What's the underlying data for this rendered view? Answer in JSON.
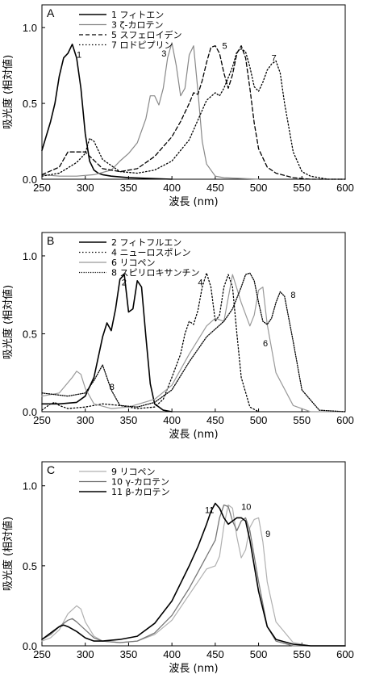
{
  "chart_data": [
    {
      "type": "line",
      "panel_label": "A",
      "xlabel": "波長 (nm)",
      "ylabel": "吸光度 (相対値)",
      "xlim": [
        250,
        600
      ],
      "ylim": [
        0,
        1.15
      ],
      "xticks": [
        "250",
        "300",
        "350",
        "400",
        "450",
        "500",
        "550",
        "600"
      ],
      "yticks": [
        "0.0",
        "0.5",
        "1.0"
      ],
      "legend_position": "top-left",
      "series": [
        {
          "name": "1 フィトエン",
          "color": "#000000",
          "width": 1.6,
          "dash": "none",
          "x": [
            250,
            260,
            265,
            270,
            275,
            280,
            285,
            290,
            295,
            300,
            305,
            310,
            315,
            320,
            330,
            350,
            400
          ],
          "y": [
            0.19,
            0.38,
            0.5,
            0.68,
            0.8,
            0.83,
            0.89,
            0.8,
            0.6,
            0.3,
            0.12,
            0.06,
            0.04,
            0.03,
            0.02,
            0.01,
            0.0
          ]
        },
        {
          "name": "3 ζ-カロテン",
          "color": "#888888",
          "width": 1.2,
          "dash": "none",
          "x": [
            250,
            270,
            290,
            310,
            330,
            340,
            350,
            360,
            370,
            375,
            380,
            385,
            390,
            395,
            400,
            405,
            410,
            415,
            420,
            425,
            430,
            435,
            440,
            450,
            460,
            500
          ],
          "y": [
            0.03,
            0.02,
            0.02,
            0.03,
            0.06,
            0.12,
            0.17,
            0.24,
            0.4,
            0.55,
            0.55,
            0.49,
            0.6,
            0.8,
            0.9,
            0.75,
            0.55,
            0.6,
            0.82,
            0.88,
            0.58,
            0.25,
            0.1,
            0.02,
            0.01,
            0.0
          ]
        },
        {
          "name": "5 スフェロイデン",
          "color": "#000000",
          "width": 1.3,
          "dash": "5,3",
          "x": [
            250,
            270,
            280,
            290,
            300,
            320,
            340,
            360,
            380,
            400,
            410,
            420,
            425,
            430,
            435,
            440,
            445,
            450,
            455,
            460,
            465,
            470,
            475,
            480,
            485,
            490,
            495,
            500,
            510,
            520,
            540,
            560,
            600
          ],
          "y": [
            0.03,
            0.08,
            0.18,
            0.18,
            0.18,
            0.07,
            0.05,
            0.07,
            0.15,
            0.28,
            0.38,
            0.5,
            0.57,
            0.56,
            0.65,
            0.77,
            0.87,
            0.88,
            0.83,
            0.7,
            0.6,
            0.69,
            0.83,
            0.88,
            0.8,
            0.6,
            0.37,
            0.2,
            0.08,
            0.04,
            0.01,
            0.0,
            0.0
          ]
        },
        {
          "name": "7 ロドピプリン",
          "color": "#000000",
          "width": 1.3,
          "dash": "1.5,2.5",
          "x": [
            250,
            270,
            290,
            300,
            305,
            310,
            320,
            340,
            360,
            380,
            400,
            420,
            440,
            450,
            455,
            460,
            470,
            475,
            480,
            485,
            490,
            495,
            500,
            505,
            510,
            515,
            520,
            525,
            530,
            540,
            550,
            560,
            580,
            600
          ],
          "y": [
            0.02,
            0.04,
            0.11,
            0.17,
            0.27,
            0.25,
            0.13,
            0.05,
            0.04,
            0.06,
            0.12,
            0.26,
            0.52,
            0.57,
            0.55,
            0.6,
            0.74,
            0.84,
            0.86,
            0.84,
            0.74,
            0.61,
            0.58,
            0.64,
            0.72,
            0.76,
            0.78,
            0.7,
            0.5,
            0.18,
            0.05,
            0.02,
            0.0,
            0.0
          ]
        }
      ],
      "annotations": [
        {
          "text": "1",
          "x": 290,
          "y": 0.8
        },
        {
          "text": "3",
          "x": 388,
          "y": 0.81
        },
        {
          "text": "5",
          "x": 458,
          "y": 0.86
        },
        {
          "text": "7",
          "x": 515,
          "y": 0.78
        }
      ]
    },
    {
      "type": "line",
      "panel_label": "B",
      "xlabel": "波長 (nm)",
      "ylabel": "吸光度 (相対値)",
      "xlim": [
        250,
        600
      ],
      "ylim": [
        0,
        1.15
      ],
      "xticks": [
        "250",
        "300",
        "350",
        "400",
        "450",
        "500",
        "550",
        "600"
      ],
      "yticks": [
        "0.0",
        "0.5",
        "1.0"
      ],
      "legend_position": "top-left",
      "series": [
        {
          "name": "2 フィトフルエン",
          "color": "#000000",
          "width": 1.6,
          "dash": "none",
          "x": [
            250,
            270,
            290,
            300,
            310,
            320,
            325,
            330,
            335,
            340,
            345,
            350,
            355,
            360,
            365,
            370,
            375,
            380,
            390,
            400
          ],
          "y": [
            0.05,
            0.05,
            0.06,
            0.1,
            0.22,
            0.48,
            0.57,
            0.52,
            0.66,
            0.85,
            0.88,
            0.64,
            0.66,
            0.84,
            0.8,
            0.48,
            0.18,
            0.05,
            0.01,
            0.0
          ]
        },
        {
          "name": "4 ニューロスポレン",
          "color": "#000000",
          "width": 1.3,
          "dash": "1.5,2.5",
          "x": [
            250,
            260,
            265,
            270,
            280,
            300,
            320,
            340,
            360,
            380,
            390,
            400,
            410,
            415,
            420,
            425,
            430,
            435,
            440,
            445,
            450,
            455,
            460,
            465,
            470,
            475,
            480,
            490,
            500
          ],
          "y": [
            0.01,
            0.05,
            0.06,
            0.04,
            0.02,
            0.03,
            0.05,
            0.04,
            0.02,
            0.03,
            0.08,
            0.22,
            0.37,
            0.5,
            0.58,
            0.56,
            0.65,
            0.8,
            0.89,
            0.8,
            0.58,
            0.62,
            0.8,
            0.88,
            0.8,
            0.5,
            0.22,
            0.03,
            0.0
          ]
        },
        {
          "name": "6 リコペン",
          "color": "#999999",
          "width": 1.2,
          "dash": "none",
          "x": [
            250,
            270,
            285,
            290,
            295,
            300,
            310,
            330,
            350,
            380,
            400,
            420,
            440,
            450,
            460,
            470,
            480,
            490,
            495,
            500,
            505,
            510,
            520,
            540,
            560,
            600
          ],
          "y": [
            0.1,
            0.12,
            0.22,
            0.26,
            0.24,
            0.15,
            0.05,
            0.02,
            0.03,
            0.08,
            0.17,
            0.37,
            0.55,
            0.6,
            0.58,
            0.88,
            0.7,
            0.55,
            0.62,
            0.78,
            0.8,
            0.56,
            0.25,
            0.04,
            0.0,
            0.0
          ]
        },
        {
          "name": "8 スピリロキサンチン",
          "color": "#000000",
          "width": 1.3,
          "dash": "1.2,1.6",
          "x": [
            250,
            280,
            300,
            310,
            320,
            330,
            340,
            360,
            380,
            400,
            420,
            440,
            460,
            470,
            480,
            485,
            490,
            495,
            500,
            505,
            510,
            515,
            520,
            525,
            530,
            540,
            550,
            570,
            600
          ],
          "y": [
            0.12,
            0.1,
            0.12,
            0.2,
            0.3,
            0.14,
            0.04,
            0.03,
            0.06,
            0.14,
            0.32,
            0.48,
            0.58,
            0.66,
            0.8,
            0.88,
            0.89,
            0.84,
            0.7,
            0.58,
            0.56,
            0.6,
            0.7,
            0.77,
            0.74,
            0.45,
            0.14,
            0.01,
            0.0
          ]
        }
      ],
      "annotations": [
        {
          "text": "2",
          "x": 342,
          "y": 0.81
        },
        {
          "text": "4",
          "x": 430,
          "y": 0.81
        },
        {
          "text": "6",
          "x": 505,
          "y": 0.42
        },
        {
          "text": "8",
          "x": 537,
          "y": 0.73
        },
        {
          "text": "8",
          "x": 328,
          "y": 0.14
        }
      ]
    },
    {
      "type": "line",
      "panel_label": "C",
      "xlabel": "波長 (nm)",
      "ylabel": "吸光度 (相対値)",
      "xlim": [
        250,
        600
      ],
      "ylim": [
        0,
        1.15
      ],
      "xticks": [
        "250",
        "300",
        "350",
        "400",
        "450",
        "500",
        "550",
        "600"
      ],
      "yticks": [
        "0.0",
        "0.5",
        "1.0"
      ],
      "legend_position": "top-left",
      "series": [
        {
          "name": "9 リコペン",
          "color": "#b0b0b0",
          "width": 1.2,
          "dash": "none",
          "x": [
            250,
            260,
            270,
            280,
            290,
            295,
            300,
            310,
            320,
            340,
            360,
            380,
            400,
            420,
            430,
            440,
            450,
            455,
            460,
            465,
            470,
            475,
            480,
            485,
            490,
            495,
            500,
            505,
            510,
            520,
            540,
            560,
            600
          ],
          "y": [
            0.03,
            0.05,
            0.1,
            0.2,
            0.25,
            0.23,
            0.15,
            0.06,
            0.03,
            0.02,
            0.03,
            0.07,
            0.16,
            0.32,
            0.4,
            0.48,
            0.5,
            0.56,
            0.75,
            0.88,
            0.86,
            0.68,
            0.55,
            0.6,
            0.74,
            0.79,
            0.8,
            0.65,
            0.4,
            0.15,
            0.02,
            0.0,
            0.0
          ]
        },
        {
          "name": "10 γ-カロテン",
          "color": "#777777",
          "width": 1.3,
          "dash": "none",
          "x": [
            250,
            260,
            270,
            280,
            285,
            290,
            300,
            310,
            320,
            340,
            360,
            380,
            400,
            420,
            430,
            440,
            450,
            455,
            460,
            465,
            470,
            475,
            480,
            485,
            490,
            500,
            510,
            520,
            540,
            560,
            600
          ],
          "y": [
            0.04,
            0.07,
            0.12,
            0.16,
            0.17,
            0.15,
            0.1,
            0.05,
            0.03,
            0.02,
            0.03,
            0.08,
            0.19,
            0.36,
            0.46,
            0.56,
            0.66,
            0.8,
            0.88,
            0.87,
            0.78,
            0.72,
            0.78,
            0.8,
            0.72,
            0.4,
            0.12,
            0.03,
            0.0,
            0.0,
            0.0
          ]
        },
        {
          "name": "11 β-カロテン",
          "color": "#000000",
          "width": 1.6,
          "dash": "none",
          "x": [
            250,
            260,
            270,
            275,
            280,
            290,
            300,
            310,
            320,
            340,
            360,
            380,
            400,
            420,
            430,
            440,
            445,
            450,
            455,
            460,
            465,
            470,
            475,
            480,
            485,
            490,
            495,
            500,
            510,
            520,
            540,
            560,
            600
          ],
          "y": [
            0.04,
            0.08,
            0.12,
            0.13,
            0.12,
            0.09,
            0.05,
            0.03,
            0.03,
            0.04,
            0.06,
            0.14,
            0.28,
            0.5,
            0.62,
            0.76,
            0.84,
            0.89,
            0.86,
            0.8,
            0.76,
            0.78,
            0.8,
            0.8,
            0.78,
            0.66,
            0.5,
            0.34,
            0.12,
            0.04,
            0.01,
            0.0,
            0.0
          ]
        }
      ],
      "annotations": [
        {
          "text": "11",
          "x": 438,
          "y": 0.83
        },
        {
          "text": "10",
          "x": 480,
          "y": 0.85
        },
        {
          "text": "9",
          "x": 508,
          "y": 0.68
        }
      ]
    }
  ]
}
